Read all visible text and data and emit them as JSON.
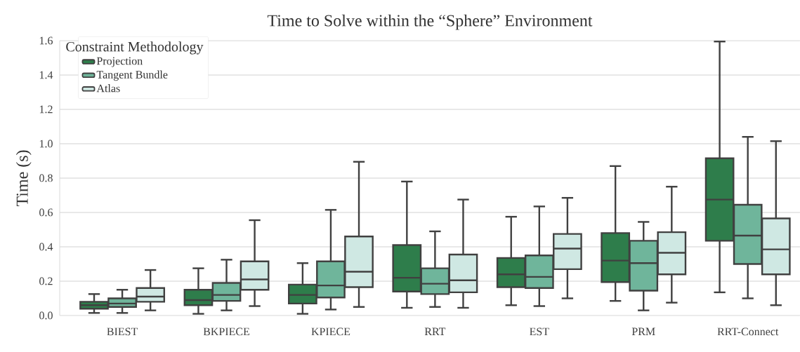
{
  "chart_data": {
    "type": "box",
    "title": "Time to Solve within the “Sphere” Environment",
    "ylabel": "Time (s)",
    "legend_title": "Constraint Methodology",
    "legend": "top left",
    "grid": "y",
    "categories": [
      "BIEST",
      "BKPIECE",
      "KPIECE",
      "RRT",
      "EST",
      "PRM",
      "RRT-Connect"
    ],
    "ylim": [
      0,
      1.6
    ],
    "yticks": [
      {
        "value": 0,
        "label": "0.0"
      },
      {
        "value": 0.2,
        "label": "0.2"
      },
      {
        "value": 0.4,
        "label": "0.4"
      },
      {
        "value": 0.6,
        "label": "0.6"
      },
      {
        "value": 0.8,
        "label": "0.8"
      },
      {
        "value": 1.0,
        "label": "1.0"
      },
      {
        "value": 1.2,
        "label": "1.2"
      },
      {
        "value": 1.4,
        "label": "1.4"
      },
      {
        "value": 1.6,
        "label": "1.6"
      }
    ],
    "series": [
      {
        "name": "Projection",
        "color": "#2e7d4b",
        "boxes": [
          {
            "low": 0.015,
            "q1": 0.04,
            "median": 0.06,
            "q3": 0.08,
            "high": 0.125
          },
          {
            "low": 0.01,
            "q1": 0.06,
            "median": 0.09,
            "q3": 0.15,
            "high": 0.275
          },
          {
            "low": 0.01,
            "q1": 0.07,
            "median": 0.12,
            "q3": 0.18,
            "high": 0.305
          },
          {
            "low": 0.045,
            "q1": 0.14,
            "median": 0.22,
            "q3": 0.41,
            "high": 0.78
          },
          {
            "low": 0.06,
            "q1": 0.165,
            "median": 0.24,
            "q3": 0.335,
            "high": 0.575
          },
          {
            "low": 0.085,
            "q1": 0.195,
            "median": 0.32,
            "q3": 0.48,
            "high": 0.87
          },
          {
            "low": 0.135,
            "q1": 0.435,
            "median": 0.675,
            "q3": 0.915,
            "high": 1.595
          }
        ]
      },
      {
        "name": "Tangent Bundle",
        "color": "#6fb59b",
        "boxes": [
          {
            "low": 0.015,
            "q1": 0.05,
            "median": 0.07,
            "q3": 0.1,
            "high": 0.15
          },
          {
            "low": 0.03,
            "q1": 0.085,
            "median": 0.12,
            "q3": 0.19,
            "high": 0.325
          },
          {
            "low": 0.035,
            "q1": 0.105,
            "median": 0.175,
            "q3": 0.315,
            "high": 0.615
          },
          {
            "low": 0.05,
            "q1": 0.125,
            "median": 0.185,
            "q3": 0.275,
            "high": 0.49
          },
          {
            "low": 0.055,
            "q1": 0.16,
            "median": 0.225,
            "q3": 0.35,
            "high": 0.635
          },
          {
            "low": 0.03,
            "q1": 0.145,
            "median": 0.305,
            "q3": 0.435,
            "high": 0.545
          },
          {
            "low": 0.1,
            "q1": 0.3,
            "median": 0.465,
            "q3": 0.645,
            "high": 1.04
          }
        ]
      },
      {
        "name": "Atlas",
        "color": "#cfe8e3",
        "boxes": [
          {
            "low": 0.03,
            "q1": 0.08,
            "median": 0.11,
            "q3": 0.16,
            "high": 0.265
          },
          {
            "low": 0.055,
            "q1": 0.15,
            "median": 0.21,
            "q3": 0.315,
            "high": 0.555
          },
          {
            "low": 0.05,
            "q1": 0.165,
            "median": 0.255,
            "q3": 0.46,
            "high": 0.895
          },
          {
            "low": 0.045,
            "q1": 0.135,
            "median": 0.205,
            "q3": 0.355,
            "high": 0.675
          },
          {
            "low": 0.1,
            "q1": 0.27,
            "median": 0.39,
            "q3": 0.475,
            "high": 0.685
          },
          {
            "low": 0.075,
            "q1": 0.24,
            "median": 0.365,
            "q3": 0.485,
            "high": 0.75
          },
          {
            "low": 0.06,
            "q1": 0.24,
            "median": 0.385,
            "q3": 0.565,
            "high": 1.015
          }
        ]
      }
    ]
  }
}
